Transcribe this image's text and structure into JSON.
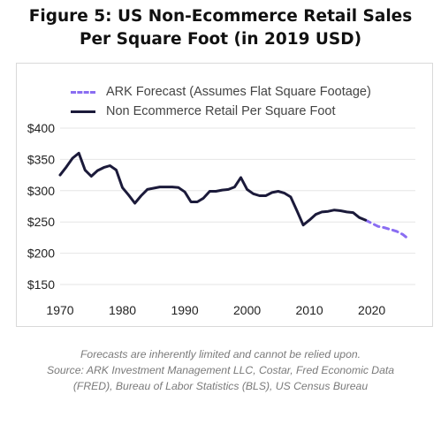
{
  "title_lines": [
    "Figure 5: US Non-Ecommerce Retail Sales",
    "Per Square Foot (in 2019 USD)"
  ],
  "colors": {
    "forecast": "#8A6DF2",
    "historical": "#1B1A3A",
    "grid": "#e6e6e6",
    "axis_text": "#222222"
  },
  "chart_data": {
    "type": "line",
    "title": "Figure 5: US Non-Ecommerce Retail Sales Per Square Foot (in 2019 USD)",
    "xlabel": "",
    "ylabel": "",
    "xlim": [
      1970,
      2027
    ],
    "ylim": [
      150,
      400
    ],
    "x_ticks": [
      1970,
      1980,
      1990,
      2000,
      2010,
      2020
    ],
    "y_ticks": [
      {
        "value": 150,
        "label": "$150"
      },
      {
        "value": 200,
        "label": "$200"
      },
      {
        "value": 250,
        "label": "$250"
      },
      {
        "value": 300,
        "label": "$300"
      },
      {
        "value": 350,
        "label": "$350"
      },
      {
        "value": 400,
        "label": "$400"
      }
    ],
    "grid": true,
    "legend_position": "top-left",
    "series": [
      {
        "name": "ARK Forecast (Assumes Flat Square Footage)",
        "style": "dashed",
        "color": "#8A6DF2",
        "x": [
          2019,
          2020,
          2021,
          2022,
          2023,
          2024,
          2025,
          2026
        ],
        "y": [
          253,
          248,
          243,
          241,
          238,
          235,
          230,
          222
        ]
      },
      {
        "name": "Non Ecommerce Retail Per Square Foot",
        "style": "solid",
        "color": "#1B1A3A",
        "x": [
          1970,
          1971,
          1972,
          1973,
          1974,
          1975,
          1976,
          1977,
          1978,
          1979,
          1980,
          1981,
          1982,
          1983,
          1984,
          1985,
          1986,
          1987,
          1988,
          1989,
          1990,
          1991,
          1992,
          1993,
          1994,
          1995,
          1996,
          1997,
          1998,
          1999,
          2000,
          2001,
          2002,
          2003,
          2004,
          2005,
          2006,
          2007,
          2008,
          2009,
          2010,
          2011,
          2012,
          2013,
          2014,
          2015,
          2016,
          2017,
          2018,
          2019
        ],
        "y": [
          325,
          338,
          352,
          360,
          333,
          323,
          332,
          337,
          340,
          333,
          305,
          293,
          280,
          292,
          302,
          304,
          306,
          306,
          306,
          305,
          298,
          282,
          282,
          288,
          299,
          299,
          301,
          302,
          306,
          321,
          302,
          295,
          292,
          292,
          297,
          299,
          296,
          290,
          268,
          245,
          253,
          262,
          266,
          267,
          269,
          268,
          266,
          265,
          257,
          253
        ]
      }
    ]
  },
  "footnote_lines": [
    "Forecasts are inherently limited and cannot be relied upon.",
    "Source: ARK Investment Management LLC, Costar, Fred Economic Data",
    "(FRED), Bureau of Labor Statistics (BLS), US Census Bureau"
  ]
}
